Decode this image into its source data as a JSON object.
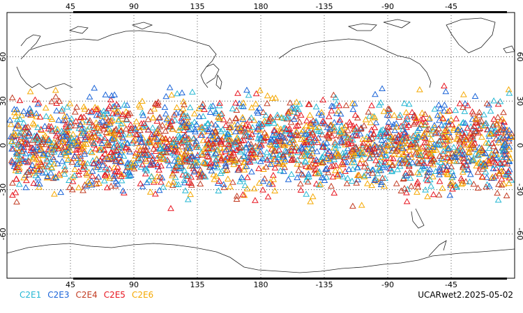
{
  "map": {
    "top_lon_labels": [
      "45",
      "90",
      "135",
      "180",
      "-135",
      "-90",
      "-45"
    ],
    "bottom_lon_labels": [
      "45",
      "90",
      "135",
      "180",
      "-135",
      "-90",
      "-45"
    ],
    "lat_labels": [
      "60",
      "30",
      "0",
      "-30",
      "-60"
    ],
    "lon_range": [
      0,
      360
    ],
    "lat_range": [
      -90,
      90
    ],
    "grid": "dotted",
    "obs_band_lat": [
      -45,
      45
    ],
    "marker": "triangle"
  },
  "legend": {
    "items": [
      {
        "label": "C2E1",
        "color": "#25b7d3"
      },
      {
        "label": "C2E3",
        "color": "#1a64d8"
      },
      {
        "label": "C2E4",
        "color": "#c23b22"
      },
      {
        "label": "C2E5",
        "color": "#e8141f"
      },
      {
        "label": "C2E6",
        "color": "#f5a800"
      }
    ]
  },
  "stamp": "UCARwet2.2025-05-02"
}
